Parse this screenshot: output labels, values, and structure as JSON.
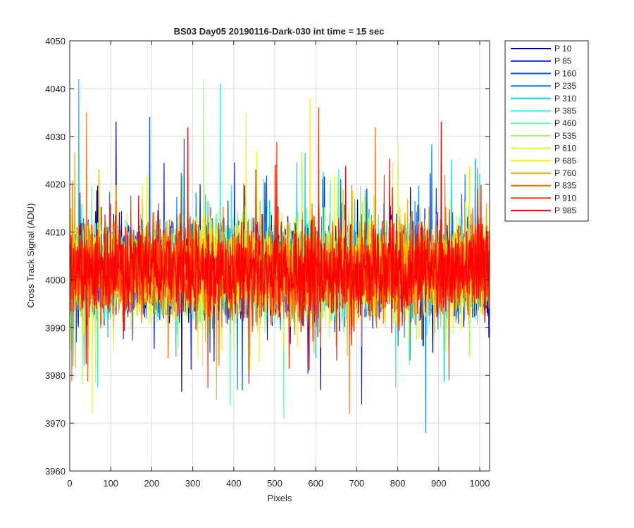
{
  "chart_data": {
    "type": "line",
    "title": "BS03 Day05 20190116-Dark-030 int time = 15 sec",
    "xlabel": "Pixels",
    "ylabel": "Cross Track Signal (ADU)",
    "xlim": [
      0,
      1024
    ],
    "ylim": [
      3960,
      4050
    ],
    "xticks": [
      0,
      100,
      200,
      300,
      400,
      500,
      600,
      700,
      800,
      900,
      1000
    ],
    "yticks": [
      3960,
      3970,
      3980,
      3990,
      4000,
      4010,
      4020,
      4030,
      4040,
      4050
    ],
    "grid": true,
    "legend_position": "outside-top-right",
    "noise": {
      "mean": 4002,
      "spread": 16,
      "points_per_series": 1024
    },
    "series": [
      {
        "name": "P 10",
        "color": "#00008f",
        "peak": {
          "x": 113,
          "y": 4033
        }
      },
      {
        "name": "P 85",
        "color": "#0010ff",
        "peak": {
          "x": 712,
          "y": 3974
        }
      },
      {
        "name": "P 160",
        "color": "#0050ff",
        "peak": {
          "x": 195,
          "y": 4034
        }
      },
      {
        "name": "P 235",
        "color": "#0090ff",
        "peak": {
          "x": 868,
          "y": 3968
        }
      },
      {
        "name": "P 310",
        "color": "#00cfff",
        "peak": {
          "x": 22,
          "y": 4042
        }
      },
      {
        "name": "P 385",
        "color": "#20ffdf",
        "peak": {
          "x": 367,
          "y": 4041
        }
      },
      {
        "name": "P 460",
        "color": "#60ff9f",
        "peak": {
          "x": 522,
          "y": 3971
        }
      },
      {
        "name": "P 535",
        "color": "#9fff60",
        "peak": {
          "x": 327,
          "y": 4042
        }
      },
      {
        "name": "P 610",
        "color": "#dfff20",
        "peak": {
          "x": 430,
          "y": 4035
        }
      },
      {
        "name": "P 685",
        "color": "#ffef00",
        "peak": {
          "x": 586,
          "y": 4038
        }
      },
      {
        "name": "P 760",
        "color": "#ffb000",
        "peak": {
          "x": 358,
          "y": 3975
        }
      },
      {
        "name": "P 835",
        "color": "#ff7000",
        "peak": {
          "x": 41,
          "y": 4035
        }
      },
      {
        "name": "P 910",
        "color": "#ff3000",
        "peak": {
          "x": 607,
          "y": 4036
        }
      },
      {
        "name": "P 985",
        "color": "#ff0000",
        "peak": {
          "x": 906,
          "y": 4033
        }
      }
    ]
  }
}
